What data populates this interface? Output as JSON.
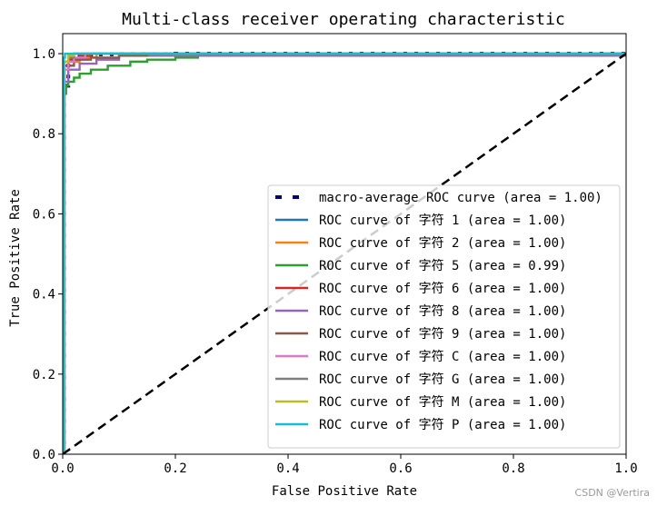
{
  "chart_data": {
    "type": "line",
    "title": "Multi-class receiver operating characteristic",
    "xlabel": "False Positive Rate",
    "ylabel": "True Positive Rate",
    "xlim": [
      0.0,
      1.0
    ],
    "ylim": [
      0.0,
      1.05
    ],
    "xticks": [
      "0.0",
      "0.2",
      "0.4",
      "0.6",
      "0.8",
      "1.0"
    ],
    "yticks": [
      "0.0",
      "0.2",
      "0.4",
      "0.6",
      "0.8",
      "1.0"
    ],
    "grid": false,
    "legend_position": "lower right",
    "series": [
      {
        "name": "macro-average ROC curve (area = 1.00)",
        "color": "#000080",
        "style": "dotted",
        "x": [
          0.0,
          0.002,
          0.01,
          0.03,
          0.06,
          0.1,
          0.2,
          1.0
        ],
        "y": [
          0.0,
          0.92,
          0.985,
          0.995,
          0.998,
          0.999,
          1.0,
          1.0
        ]
      },
      {
        "name": "ROC curve of 字符 1 (area = 1.00)",
        "color": "#1f77b4",
        "style": "solid",
        "x": [
          0.0,
          0.003,
          0.01,
          0.02,
          1.0
        ],
        "y": [
          0.0,
          0.97,
          0.995,
          1.0,
          1.0
        ]
      },
      {
        "name": "ROC curve of 字符 2 (area = 1.00)",
        "color": "#ff7f0e",
        "style": "solid",
        "x": [
          0.0,
          0.003,
          0.01,
          0.03,
          0.06,
          1.0
        ],
        "y": [
          0.0,
          0.96,
          0.98,
          0.99,
          1.0,
          1.0
        ]
      },
      {
        "name": "ROC curve of 字符 5 (area = 0.99)",
        "color": "#2ca02c",
        "style": "solid",
        "x": [
          0.0,
          0.003,
          0.006,
          0.01,
          0.02,
          0.03,
          0.05,
          0.08,
          0.12,
          0.15,
          0.2,
          0.24,
          0.24,
          1.0
        ],
        "y": [
          0.0,
          0.9,
          0.92,
          0.93,
          0.94,
          0.95,
          0.96,
          0.97,
          0.98,
          0.985,
          0.99,
          0.99,
          1.0,
          1.0
        ]
      },
      {
        "name": "ROC curve of 字符 6 (area = 1.00)",
        "color": "#d62728",
        "style": "solid",
        "x": [
          0.0,
          0.003,
          0.01,
          0.03,
          0.05,
          1.0
        ],
        "y": [
          0.0,
          0.97,
          0.985,
          0.995,
          1.0,
          1.0
        ]
      },
      {
        "name": "ROC curve of 字符 8 (area = 1.00)",
        "color": "#9467bd",
        "style": "solid",
        "x": [
          0.0,
          0.003,
          0.01,
          0.03,
          0.06,
          0.1,
          1.0
        ],
        "y": [
          0.0,
          0.93,
          0.96,
          0.975,
          0.985,
          0.995,
          1.0
        ]
      },
      {
        "name": "ROC curve of 字符 9 (area = 1.00)",
        "color": "#8c564b",
        "style": "solid",
        "x": [
          0.0,
          0.003,
          0.02,
          0.05,
          0.1,
          0.15,
          1.0
        ],
        "y": [
          0.0,
          0.97,
          0.985,
          0.99,
          0.995,
          1.0,
          1.0
        ]
      },
      {
        "name": "ROC curve of 字符 C (area = 1.00)",
        "color": "#e377c2",
        "style": "solid",
        "x": [
          0.0,
          0.003,
          0.01,
          0.02,
          0.04,
          1.0
        ],
        "y": [
          0.0,
          0.96,
          0.98,
          0.99,
          1.0,
          1.0
        ]
      },
      {
        "name": "ROC curve of 字符 G (area = 1.00)",
        "color": "#7f7f7f",
        "style": "solid",
        "x": [
          0.0,
          0.003,
          0.01,
          0.02,
          1.0
        ],
        "y": [
          0.0,
          0.98,
          0.99,
          1.0,
          1.0
        ]
      },
      {
        "name": "ROC curve of 字符 M (area = 1.00)",
        "color": "#bcbd22",
        "style": "solid",
        "x": [
          0.0,
          0.003,
          0.01,
          0.02,
          1.0
        ],
        "y": [
          0.0,
          0.98,
          0.995,
          1.0,
          1.0
        ]
      },
      {
        "name": "ROC curve of 字符 P (area = 1.00)",
        "color": "#17becf",
        "style": "solid",
        "x": [
          0.0,
          0.002,
          0.004,
          1.0
        ],
        "y": [
          0.0,
          0.99,
          1.0,
          1.0
        ]
      }
    ],
    "reference_line": {
      "x": [
        0.0,
        1.0
      ],
      "y": [
        0.0,
        1.0
      ],
      "color": "#000000",
      "style": "dashed"
    }
  },
  "watermark": "CSDN @Vertira"
}
